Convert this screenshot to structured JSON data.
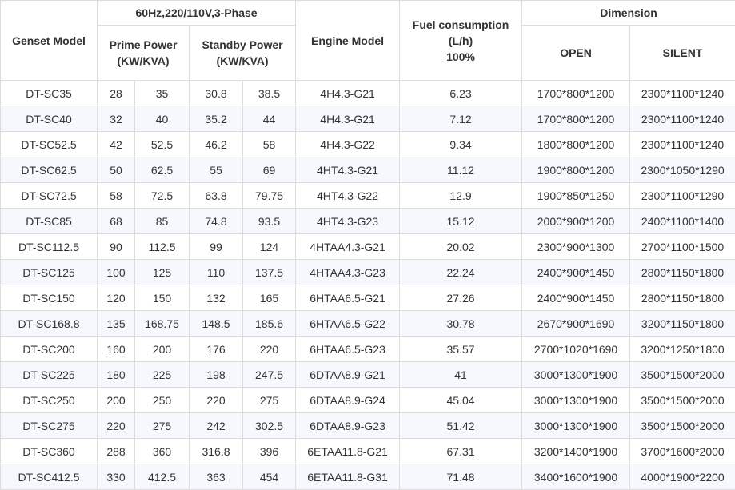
{
  "header": {
    "genset_model": "Genset Model",
    "group_title": "60Hz,220/110V,3-Phase",
    "prime_power": "Prime Power (KW/KVA)",
    "standby_power": "Standby Power (KW/KVA)",
    "engine_model": "Engine Model",
    "fuel_line1": "Fuel consumption",
    "fuel_line2": "(L/h)",
    "fuel_line3": "100%",
    "dimension": "Dimension",
    "open": "OPEN",
    "silent": "SILENT"
  },
  "rows": [
    [
      "DT-SC35",
      "28",
      "35",
      "30.8",
      "38.5",
      "4H4.3-G21",
      "6.23",
      "1700*800*1200",
      "2300*1100*1240"
    ],
    [
      "DT-SC40",
      "32",
      "40",
      "35.2",
      "44",
      "4H4.3-G21",
      "7.12",
      "1700*800*1200",
      "2300*1100*1240"
    ],
    [
      "DT-SC52.5",
      "42",
      "52.5",
      "46.2",
      "58",
      "4H4.3-G22",
      "9.34",
      "1800*800*1200",
      "2300*1100*1240"
    ],
    [
      "DT-SC62.5",
      "50",
      "62.5",
      "55",
      "69",
      "4HT4.3-G21",
      "11.12",
      "1900*800*1200",
      "2300*1050*1290"
    ],
    [
      "DT-SC72.5",
      "58",
      "72.5",
      "63.8",
      "79.75",
      "4HT4.3-G22",
      "12.9",
      "1900*850*1250",
      "2300*1100*1290"
    ],
    [
      "DT-SC85",
      "68",
      "85",
      "74.8",
      "93.5",
      "4HT4.3-G23",
      "15.12",
      "2000*900*1200",
      "2400*1100*1400"
    ],
    [
      "DT-SC112.5",
      "90",
      "112.5",
      "99",
      "124",
      "4HTAA4.3-G21",
      "20.02",
      "2300*900*1300",
      "2700*1100*1500"
    ],
    [
      "DT-SC125",
      "100",
      "125",
      "110",
      "137.5",
      "4HTAA4.3-G23",
      "22.24",
      "2400*900*1450",
      "2800*1150*1800"
    ],
    [
      "DT-SC150",
      "120",
      "150",
      "132",
      "165",
      "6HTAA6.5-G21",
      "27.26",
      "2400*900*1450",
      "2800*1150*1800"
    ],
    [
      "DT-SC168.8",
      "135",
      "168.75",
      "148.5",
      "185.6",
      "6HTAA6.5-G22",
      "30.78",
      "2670*900*1690",
      "3200*1150*1800"
    ],
    [
      "DT-SC200",
      "160",
      "200",
      "176",
      "220",
      "6HTAA6.5-G23",
      "35.57",
      "2700*1020*1690",
      "3200*1250*1800"
    ],
    [
      "DT-SC225",
      "180",
      "225",
      "198",
      "247.5",
      "6DTAA8.9-G21",
      "41",
      "3000*1300*1900",
      "3500*1500*2000"
    ],
    [
      "DT-SC250",
      "200",
      "250",
      "220",
      "275",
      "6DTAA8.9-G24",
      "45.04",
      "3000*1300*1900",
      "3500*1500*2000"
    ],
    [
      "DT-SC275",
      "220",
      "275",
      "242",
      "302.5",
      "6DTAA8.9-G23",
      "51.42",
      "3000*1300*1900",
      "3500*1500*2000"
    ],
    [
      "DT-SC360",
      "288",
      "360",
      "316.8",
      "396",
      "6ETAA11.8-G21",
      "67.31",
      "3200*1400*1900",
      "3700*1600*2000"
    ],
    [
      "DT-SC412.5",
      "330",
      "412.5",
      "363",
      "454",
      "6ETAA11.8-G31",
      "71.48",
      "3400*1600*1900",
      "4000*1900*2200"
    ]
  ]
}
